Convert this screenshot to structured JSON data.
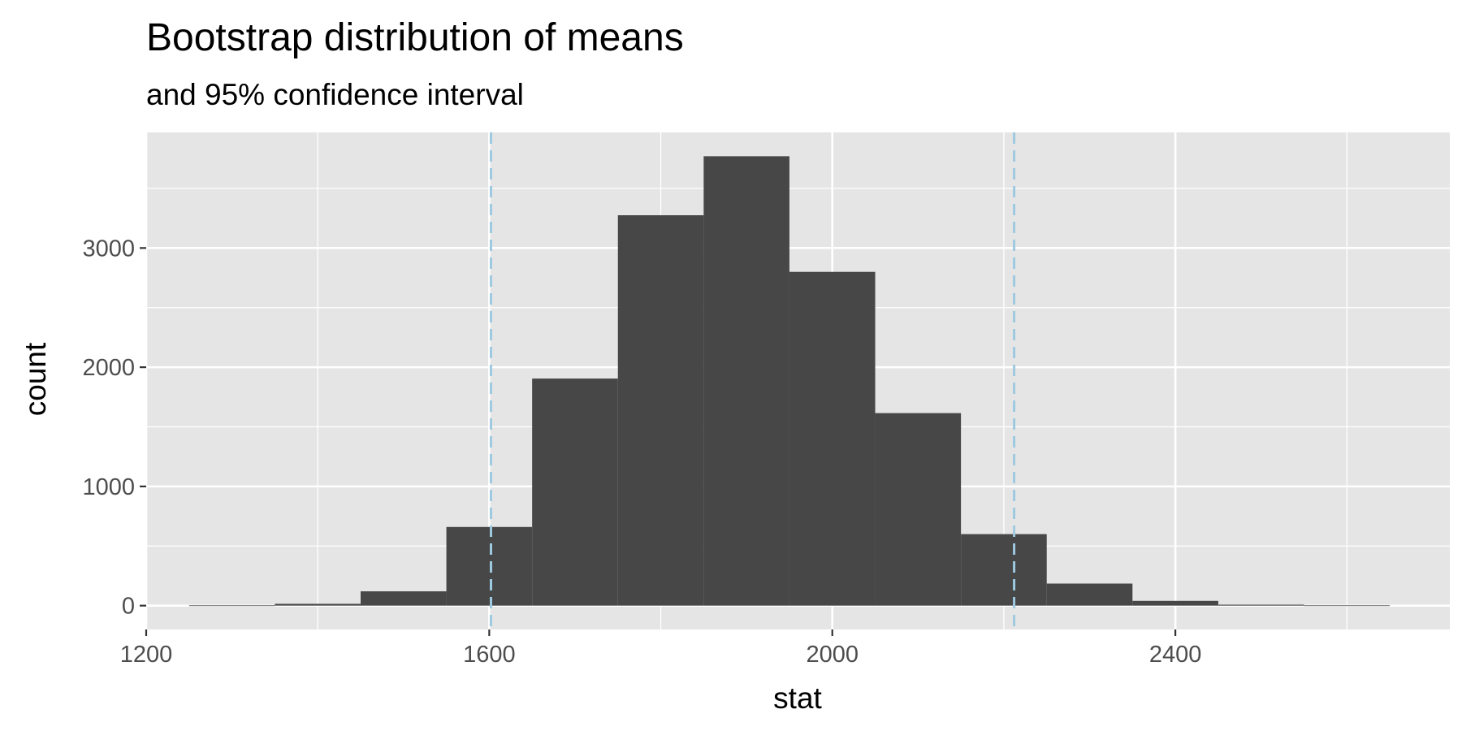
{
  "chart_data": {
    "type": "bar",
    "title": "Bootstrap distribution of means",
    "subtitle": "and 95% confidence interval",
    "xlabel": "stat",
    "ylabel": "count",
    "xlim": [
      1200,
      2720
    ],
    "ylim": [
      -200,
      3970
    ],
    "x_ticks": [
      1200,
      1600,
      2000,
      2400
    ],
    "y_ticks": [
      0,
      1000,
      2000,
      3000
    ],
    "x_minor_ticks": [
      1400,
      1800,
      2200,
      2600
    ],
    "y_minor_ticks": [
      500,
      1500,
      2500,
      3500
    ],
    "bins": [
      {
        "x0": 1250,
        "x1": 1350,
        "count": 2
      },
      {
        "x0": 1350,
        "x1": 1450,
        "count": 15
      },
      {
        "x0": 1450,
        "x1": 1550,
        "count": 120
      },
      {
        "x0": 1550,
        "x1": 1650,
        "count": 660
      },
      {
        "x0": 1650,
        "x1": 1750,
        "count": 1905
      },
      {
        "x0": 1750,
        "x1": 1850,
        "count": 3275
      },
      {
        "x0": 1850,
        "x1": 1950,
        "count": 3770
      },
      {
        "x0": 1950,
        "x1": 2050,
        "count": 2800
      },
      {
        "x0": 2050,
        "x1": 2150,
        "count": 1615
      },
      {
        "x0": 2150,
        "x1": 2250,
        "count": 600
      },
      {
        "x0": 2250,
        "x1": 2350,
        "count": 185
      },
      {
        "x0": 2350,
        "x1": 2450,
        "count": 40
      },
      {
        "x0": 2450,
        "x1": 2550,
        "count": 8
      },
      {
        "x0": 2550,
        "x1": 2650,
        "count": 2
      }
    ],
    "ci_lines": [
      1602,
      2212
    ],
    "grid": true,
    "legend": "none"
  },
  "colors": {
    "panel_background": "#e5e5e5",
    "grid": "#ffffff",
    "bar_fill": "#474747",
    "ci_line": "#9ecae1",
    "tick_text": "#4d4d4d",
    "tick_mark": "#333333"
  }
}
